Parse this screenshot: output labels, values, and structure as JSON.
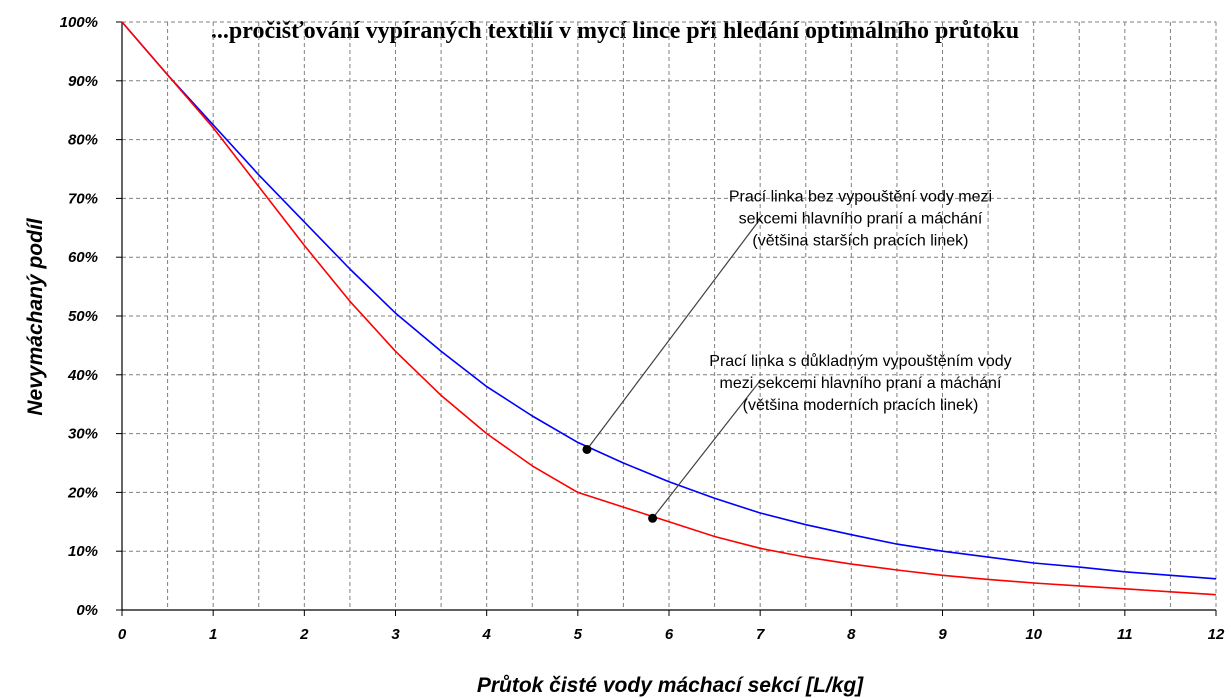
{
  "chart_data": {
    "type": "line",
    "title": "...pročišťování vypíraných textilií v mycí lince při hledání optimálního průtoku",
    "xlabel": "Průtok čisté vody máchací sekcí [L/kg]",
    "ylabel": "Nevymáchaný podíl",
    "xlim": [
      0,
      12
    ],
    "ylim": [
      0,
      100
    ],
    "x_ticks": [
      "0",
      "1",
      "2",
      "3",
      "4",
      "5",
      "6",
      "7",
      "8",
      "9",
      "10",
      "11",
      "12"
    ],
    "y_ticks": [
      "0%",
      "10%",
      "20%",
      "30%",
      "40%",
      "50%",
      "60%",
      "70%",
      "80%",
      "90%",
      "100%"
    ],
    "grid": true,
    "x": [
      0,
      0.5,
      1,
      1.5,
      2,
      2.5,
      3,
      3.5,
      4,
      4.5,
      5,
      5.5,
      6,
      6.5,
      7,
      7.5,
      8,
      8.5,
      9,
      9.5,
      10,
      10.5,
      11,
      11.5,
      12
    ],
    "series": [
      {
        "color": "#0000ff",
        "values": [
          100,
          91,
          82.5,
          74,
          66,
          58,
          50.5,
          44,
          38,
          33,
          28.5,
          25,
          21.8,
          19,
          16.5,
          14.5,
          12.8,
          11.2,
          10,
          9,
          8,
          7.3,
          6.5,
          5.9,
          5.3
        ]
      },
      {
        "color": "#ff0000",
        "values": [
          100,
          91,
          82,
          72,
          62,
          52.5,
          44,
          36.5,
          30,
          24.5,
          20,
          17.5,
          15,
          12.5,
          10.5,
          9,
          7.8,
          6.8,
          5.9,
          5.2,
          4.6,
          4.1,
          3.6,
          3.1,
          2.6
        ]
      }
    ],
    "annotations": [
      {
        "lines": [
          "Prací linka bez vypouštění vody mezi",
          "sekcemi hlavního praní a máchání",
          "(většina starších pracích linek)"
        ],
        "point": [
          5.1,
          27.3
        ],
        "text_at": [
          8.1,
          69.5
        ],
        "tip_at": [
          7.0,
          66.5
        ]
      },
      {
        "lines": [
          "Prací linka s důkladným vypouštěním vody",
          "mezi sekcemi hlavního praní a máchání",
          "(většina moderních pracích linek)"
        ],
        "point": [
          5.82,
          15.6
        ],
        "text_at": [
          8.1,
          41.5
        ],
        "tip_at": [
          7.0,
          39.0
        ]
      }
    ]
  }
}
